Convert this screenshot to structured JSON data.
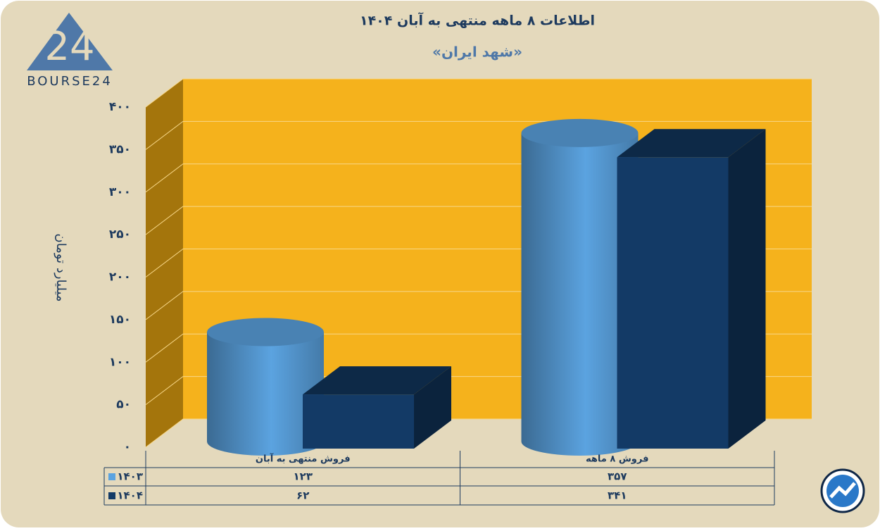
{
  "logo": {
    "mark": "24",
    "text": "BOURSE24"
  },
  "chart_data": {
    "type": "bar3d",
    "title": "اطلاعات ۸ ماهه منتهی به آبان ۱۴۰۴",
    "subtitle": "«شهد ایران»",
    "y_label": "میلیارد تومان",
    "categories": [
      "فروش منتهی به آبان",
      "فروش ۸ ماهه"
    ],
    "series": [
      {
        "name": "۱۴۰۳",
        "color": "#5ba3e0",
        "shape": "cylinder",
        "values": [
          123,
          357
        ],
        "value_labels": [
          "۱۲۳",
          "۳۵۷"
        ]
      },
      {
        "name": "۱۴۰۴",
        "color": "#133a66",
        "shape": "box",
        "values": [
          62,
          341
        ],
        "value_labels": [
          "۶۲",
          "۳۴۱"
        ]
      }
    ],
    "ylim": [
      0,
      400
    ],
    "yticks": [
      {
        "value": 0,
        "label": "۰"
      },
      {
        "value": 50,
        "label": "۵۰"
      },
      {
        "value": 100,
        "label": "۱۰۰"
      },
      {
        "value": 150,
        "label": "۱۵۰"
      },
      {
        "value": 200,
        "label": "۲۰۰"
      },
      {
        "value": 250,
        "label": "۲۵۰"
      },
      {
        "value": 300,
        "label": "۳۰۰"
      },
      {
        "value": 350,
        "label": "۳۵۰"
      },
      {
        "value": 400,
        "label": "۴۰۰"
      }
    ],
    "grid": true
  }
}
